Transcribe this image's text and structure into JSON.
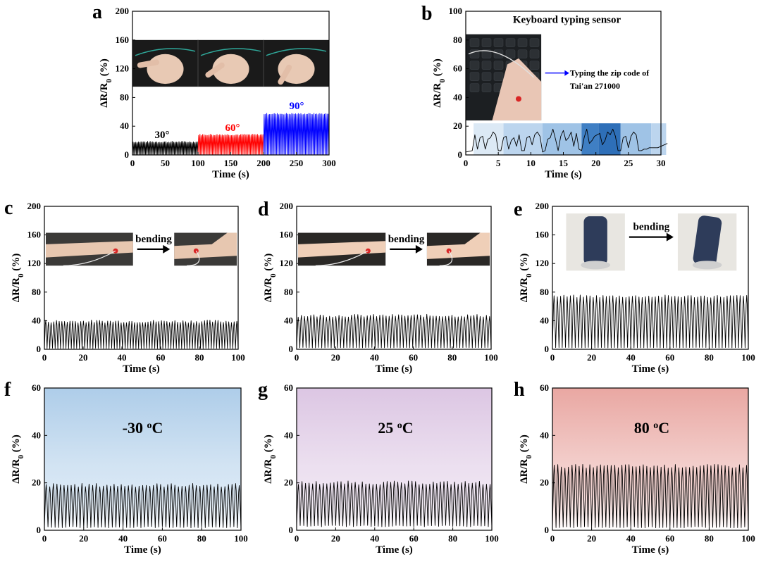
{
  "panel_labels": [
    "a",
    "b",
    "c",
    "d",
    "e",
    "f",
    "g",
    "h"
  ],
  "colors": {
    "black": "#000000",
    "red": "#ff0000",
    "blue": "#0000ff",
    "blue_grad": "#aecde9",
    "purple_grad": "#dcc6e3",
    "red_grad": "#e9a7a2"
  },
  "chart_data": [
    {
      "id": "a",
      "type": "line",
      "xlabel": "Time (s)",
      "ylabel": "ΔR/R₀ (%)",
      "xlim": [
        0,
        300
      ],
      "ylim": [
        0,
        200
      ],
      "xticks": [
        0,
        50,
        100,
        150,
        200,
        250,
        300
      ],
      "yticks": [
        0,
        40,
        80,
        120,
        160,
        200
      ],
      "annotations": [
        {
          "text": "30°",
          "color": "#000000"
        },
        {
          "text": "60°",
          "color": "#ff0000"
        },
        {
          "text": "90°",
          "color": "#0000ff"
        }
      ],
      "series": [
        {
          "name": "30°",
          "color": "#000000",
          "x_range": [
            0,
            100
          ],
          "cycles": 50,
          "peak": 18,
          "base": 0
        },
        {
          "name": "60°",
          "color": "#ff0000",
          "x_range": [
            100,
            200
          ],
          "cycles": 50,
          "peak": 28,
          "base": 0
        },
        {
          "name": "90°",
          "color": "#0000ff",
          "x_range": [
            200,
            300
          ],
          "cycles": 50,
          "peak": 57,
          "base": 0
        }
      ]
    },
    {
      "id": "b",
      "type": "line",
      "title": "Keyboard typing sensor",
      "annotation": "Typing the zip code of Tai'an 271000",
      "xlabel": "Time (s)",
      "ylabel": "ΔR/R₀ (%)",
      "xlim": [
        0,
        30
      ],
      "ylim": [
        0,
        100
      ],
      "xticks": [
        0,
        5,
        10,
        15,
        20,
        25,
        30
      ],
      "yticks": [
        0,
        20,
        40,
        60,
        80,
        100
      ],
      "x": [
        0,
        0.5,
        1,
        1.4,
        1.8,
        2.2,
        2.6,
        3,
        3.4,
        3.8,
        4.2,
        4.6,
        5,
        5.4,
        5.8,
        6.2,
        6.6,
        7,
        7.4,
        7.8,
        8.2,
        8.6,
        9,
        9.4,
        9.8,
        10.2,
        10.6,
        11,
        11.4,
        11.8,
        12.2,
        12.6,
        13,
        13.4,
        13.8,
        14.2,
        14.6,
        15,
        15.4,
        15.8,
        16.2,
        16.6,
        17,
        17.4,
        17.8,
        18.2,
        18.6,
        19,
        19.4,
        19.8,
        20.2,
        20.6,
        21,
        21.4,
        21.8,
        22.2,
        22.6,
        23,
        23.4,
        23.8,
        24.2,
        24.6,
        25,
        25.4,
        25.8,
        26.2,
        26.6,
        27,
        27.4,
        27.8,
        28.2,
        28.6,
        29,
        29.5,
        30,
        30.5,
        31
      ],
      "y": [
        2,
        2.5,
        3,
        14,
        4,
        12,
        13,
        4,
        11,
        12,
        16,
        14,
        3,
        3,
        12,
        13,
        4,
        10,
        12,
        6,
        14,
        3,
        3,
        12,
        13,
        7,
        14,
        16,
        13,
        2,
        3,
        11,
        12,
        18,
        11,
        3,
        13,
        17,
        10,
        12,
        16,
        6,
        15,
        4,
        3,
        12,
        18,
        8,
        10,
        13,
        14,
        15,
        7,
        10,
        16,
        14,
        18,
        13,
        3,
        3,
        12,
        13,
        5,
        13,
        16,
        14,
        3,
        3,
        4,
        4,
        5,
        5,
        5,
        5,
        6,
        7,
        8
      ]
    },
    {
      "id": "c",
      "type": "line",
      "annotation": "bending",
      "xlabel": "Time (s)",
      "ylabel": "ΔR/R₀ (%)",
      "xlim": [
        0,
        100
      ],
      "ylim": [
        0,
        200
      ],
      "xticks": [
        0,
        20,
        40,
        60,
        80,
        100
      ],
      "yticks": [
        0,
        40,
        80,
        120,
        160,
        200
      ],
      "cycles": 72,
      "peak": 39,
      "base": 1
    },
    {
      "id": "d",
      "type": "line",
      "annotation": "bending",
      "xlabel": "Time (s)",
      "ylabel": "ΔR/R₀ (%)",
      "xlim": [
        0,
        100
      ],
      "ylim": [
        0,
        200
      ],
      "xticks": [
        0,
        20,
        40,
        60,
        80,
        100
      ],
      "yticks": [
        0,
        40,
        80,
        120,
        160,
        200
      ],
      "cycles": 62,
      "peak": 47,
      "base": 2
    },
    {
      "id": "e",
      "type": "line",
      "annotation": "bending",
      "xlabel": "Time (s)",
      "ylabel": "ΔR/R₀ (%)",
      "xlim": [
        0,
        100
      ],
      "ylim": [
        0,
        200
      ],
      "xticks": [
        0,
        20,
        40,
        60,
        80,
        100
      ],
      "yticks": [
        0,
        40,
        80,
        120,
        160,
        200
      ],
      "cycles": 60,
      "peak": 74,
      "base": 2
    },
    {
      "id": "f",
      "type": "line",
      "annotation": "-30 °C",
      "xlabel": "Time (s)",
      "ylabel": "ΔR/R₀ (%)",
      "xlim": [
        0,
        100
      ],
      "ylim": [
        0,
        60
      ],
      "xticks": [
        0,
        20,
        40,
        60,
        80,
        100
      ],
      "yticks": [
        0,
        20,
        40,
        60
      ],
      "cycles": 55,
      "peak": 19,
      "base": 1
    },
    {
      "id": "g",
      "type": "line",
      "annotation": "25 °C",
      "xlabel": "Time (s)",
      "ylabel": "ΔR/R₀ (%)",
      "xlim": [
        0,
        100
      ],
      "ylim": [
        0,
        60
      ],
      "xticks": [
        0,
        20,
        40,
        60,
        80,
        100
      ],
      "yticks": [
        0,
        20,
        40,
        60
      ],
      "cycles": 55,
      "peak": 20,
      "base": 1.5
    },
    {
      "id": "h",
      "type": "line",
      "annotation": "80 °C",
      "xlabel": "Time (s)",
      "ylabel": "ΔR/R₀ (%)",
      "xlim": [
        0,
        100
      ],
      "ylim": [
        0,
        60
      ],
      "xticks": [
        0,
        20,
        40,
        60,
        80,
        100
      ],
      "yticks": [
        0,
        20,
        40,
        60
      ],
      "cycles": 55,
      "peak": 27,
      "base": 1
    }
  ]
}
